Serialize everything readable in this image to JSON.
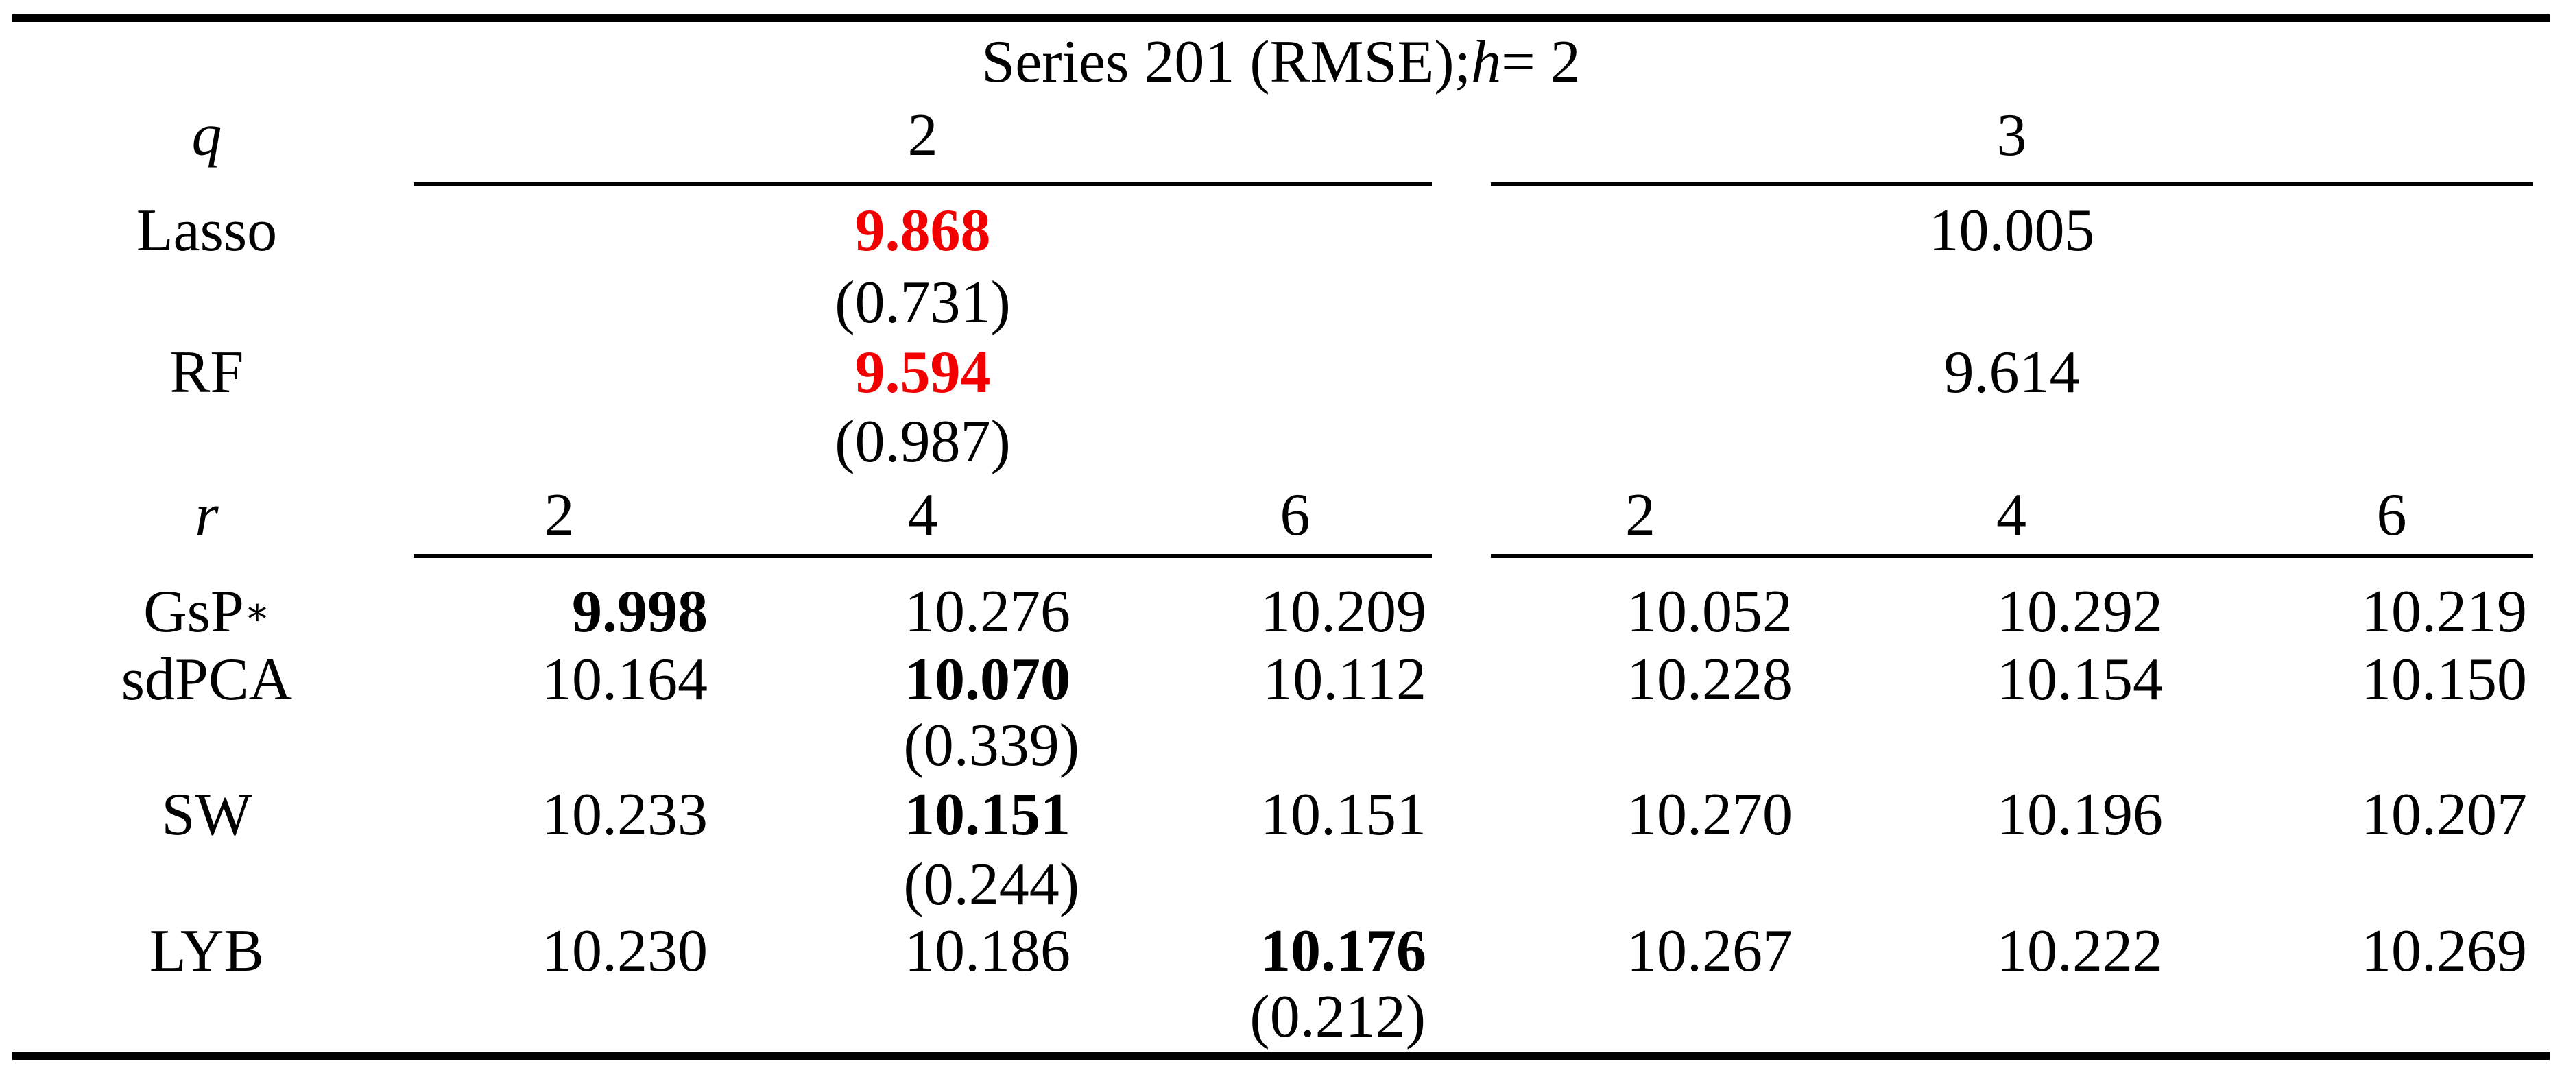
{
  "colors": {
    "highlight_red": "#f20000",
    "text": "#000000",
    "rule": "#000000"
  },
  "title": {
    "text_before": "Series 201 (RMSE); ",
    "var": "h",
    "text_after": " = 2"
  },
  "q_header": {
    "label": "q",
    "group_values": [
      "2",
      "3"
    ]
  },
  "aggregate_rows": [
    {
      "label": "Lasso",
      "value_q2": "9.868",
      "value_q2_se": "(0.731)",
      "value_q3": "10.005"
    },
    {
      "label": "RF",
      "value_q2": "9.594",
      "value_q2_se": "(0.987)",
      "value_q3": "9.614"
    }
  ],
  "r_header": {
    "label": "r",
    "values": [
      "2",
      "4",
      "6",
      "2",
      "4",
      "6"
    ]
  },
  "method_rows": [
    {
      "label": "GsP",
      "sup": "∗",
      "values": [
        "9.998",
        "10.276",
        "10.209",
        "10.052",
        "10.292",
        "10.219"
      ],
      "bold_index": 0
    },
    {
      "label": "sdPCA",
      "values": [
        "10.164",
        "10.070",
        "10.112",
        "10.228",
        "10.154",
        "10.150"
      ],
      "bold_index": 1,
      "se": "(0.339)",
      "se_under_index": 1
    },
    {
      "label": "SW",
      "values": [
        "10.233",
        "10.151",
        "10.151",
        "10.270",
        "10.196",
        "10.207"
      ],
      "bold_index": 1,
      "se": "(0.244)",
      "se_under_index": 1
    },
    {
      "label": "LYB",
      "values": [
        "10.230",
        "10.186",
        "10.176",
        "10.267",
        "10.222",
        "10.269"
      ],
      "bold_index": 2,
      "se": "(0.212)",
      "se_under_index": 2
    }
  ]
}
